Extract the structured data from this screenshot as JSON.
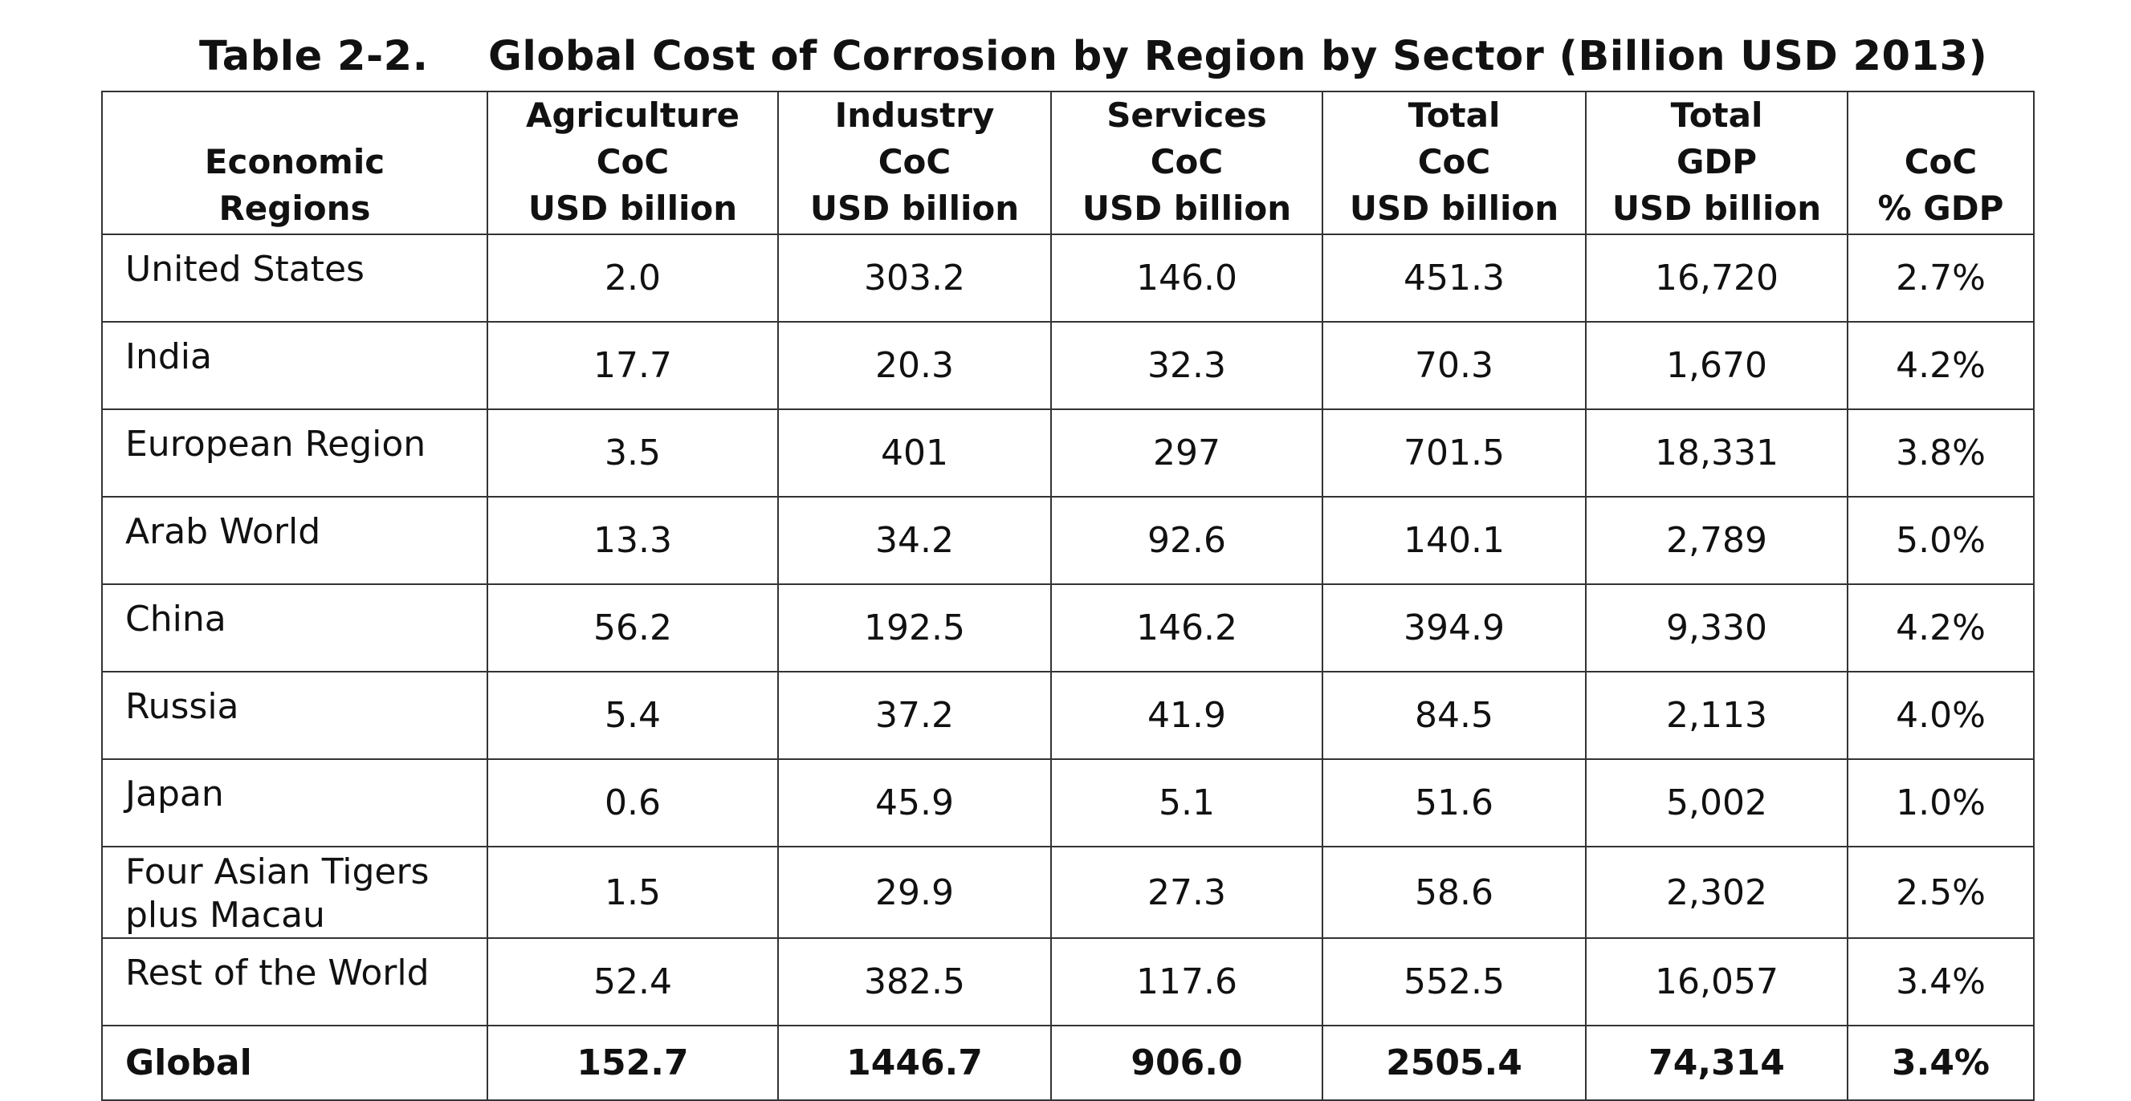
{
  "title": {
    "label": "Table 2-2.",
    "text": "Global Cost of Corrosion by Region by Sector (Billion USD 2013)"
  },
  "columns": [
    {
      "lines": [
        "Economic",
        "Regions"
      ]
    },
    {
      "lines": [
        "Agriculture",
        "CoC",
        "USD billion"
      ]
    },
    {
      "lines": [
        "Industry",
        "CoC",
        "USD billion"
      ]
    },
    {
      "lines": [
        "Services",
        "CoC",
        "USD billion"
      ]
    },
    {
      "lines": [
        "Total",
        "CoC",
        "USD billion"
      ]
    },
    {
      "lines": [
        "Total",
        "GDP",
        "USD billion"
      ]
    },
    {
      "lines": [
        "CoC",
        "% GDP"
      ]
    }
  ],
  "rows": [
    {
      "region": "United States",
      "agriculture": "2.0",
      "industry": "303.2",
      "services": "146.0",
      "total_coc": "451.3",
      "gdp": "16,720",
      "pct_gdp": "2.7%"
    },
    {
      "region": "India",
      "agriculture": "17.7",
      "industry": "20.3",
      "services": "32.3",
      "total_coc": "70.3",
      "gdp": "1,670",
      "pct_gdp": "4.2%"
    },
    {
      "region": "European Region",
      "agriculture": "3.5",
      "industry": "401",
      "services": "297",
      "total_coc": "701.5",
      "gdp": "18,331",
      "pct_gdp": "3.8%"
    },
    {
      "region": "Arab World",
      "agriculture": "13.3",
      "industry": "34.2",
      "services": "92.6",
      "total_coc": "140.1",
      "gdp": "2,789",
      "pct_gdp": "5.0%"
    },
    {
      "region": "China",
      "agriculture": "56.2",
      "industry": "192.5",
      "services": "146.2",
      "total_coc": "394.9",
      "gdp": "9,330",
      "pct_gdp": "4.2%"
    },
    {
      "region": "Russia",
      "agriculture": "5.4",
      "industry": "37.2",
      "services": "41.9",
      "total_coc": "84.5",
      "gdp": "2,113",
      "pct_gdp": "4.0%"
    },
    {
      "region": "Japan",
      "agriculture": "0.6",
      "industry": "45.9",
      "services": "5.1",
      "total_coc": "51.6",
      "gdp": "5,002",
      "pct_gdp": "1.0%"
    },
    {
      "region": "Four Asian Tigers plus Macau",
      "agriculture": "1.5",
      "industry": "29.9",
      "services": "27.3",
      "total_coc": "58.6",
      "gdp": "2,302",
      "pct_gdp": "2.5%"
    },
    {
      "region": "Rest of the World",
      "agriculture": "52.4",
      "industry": "382.5",
      "services": "117.6",
      "total_coc": "552.5",
      "gdp": "16,057",
      "pct_gdp": "3.4%"
    }
  ],
  "total": {
    "region": "Global",
    "agriculture": "152.7",
    "industry": "1446.7",
    "services": "906.0",
    "total_coc": "2505.4",
    "gdp": "74,314",
    "pct_gdp": "3.4%"
  }
}
